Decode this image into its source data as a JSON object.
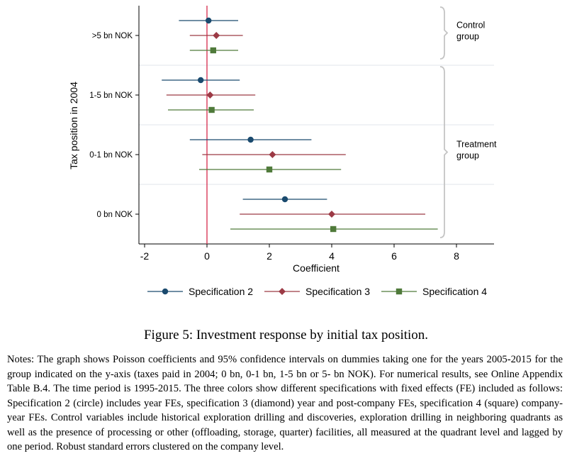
{
  "chart_data": {
    "type": "coefficient_plot",
    "xlabel": "Coefficient",
    "ylabel": "Tax position in 2004",
    "xlim": [
      -2.2,
      9.2
    ],
    "xticks": [
      -2,
      0,
      2,
      4,
      6,
      8
    ],
    "xtick_labels": [
      "-2",
      "0",
      "2",
      "4",
      "6",
      "8"
    ],
    "reference_line": 0,
    "categories": [
      ">5 bn NOK",
      "1-5  bn NOK",
      "0-1  bn NOK",
      "0 bn NOK"
    ],
    "series": [
      {
        "name": "Specification 2",
        "marker": "circle",
        "color": "#1a4a6e",
        "estimates": [
          0.05,
          -0.2,
          1.4,
          2.5
        ],
        "ci_low": [
          -0.9,
          -1.45,
          -0.55,
          1.15
        ],
        "ci_high": [
          1.0,
          1.05,
          3.35,
          3.85
        ]
      },
      {
        "name": "Specification 3",
        "marker": "diamond",
        "color": "#9c3a45",
        "estimates": [
          0.3,
          0.1,
          2.1,
          4.0
        ],
        "ci_low": [
          -0.55,
          -1.3,
          -0.15,
          1.05
        ],
        "ci_high": [
          1.15,
          1.55,
          4.45,
          7.0
        ]
      },
      {
        "name": "Specification 4",
        "marker": "square",
        "color": "#4f7a3a",
        "estimates": [
          0.2,
          0.15,
          2.0,
          4.05
        ],
        "ci_low": [
          -0.55,
          -1.25,
          -0.25,
          0.75
        ],
        "ci_high": [
          1.0,
          1.5,
          4.3,
          7.4
        ]
      }
    ],
    "group_brackets": [
      {
        "label_lines": [
          "Control",
          "group"
        ],
        "categories": [
          ">5 bn NOK"
        ]
      },
      {
        "label_lines": [
          "Treatment",
          "group"
        ],
        "categories": [
          "1-5  bn NOK",
          "0-1  bn NOK",
          "0 bn NOK"
        ]
      }
    ]
  },
  "caption": "Figure 5: Investment response by initial tax position.",
  "notes": "Notes: The graph shows Poisson coefficients and 95% confidence intervals on dummies taking one for the years 2005-2015 for the group indicated on the y-axis (taxes paid in 2004; 0 bn, 0-1 bn, 1-5 bn or 5- bn NOK). For numerical results, see Online Appendix Table B.4. The time period is 1995-2015. The three colors show different specifications with fixed effects (FE) included as follows: Specification 2 (circle) includes year FEs, specification 3 (diamond) year and post-company FEs, specification 4 (square) company-year FEs. Control variables include historical exploration drilling and discoveries, exploration drilling in neighboring quadrants as well as the presence of processing or other (offloading, storage, quarter) facilities, all measured at the quadrant level and lagged by one period. Robust standard errors clustered on the company level."
}
